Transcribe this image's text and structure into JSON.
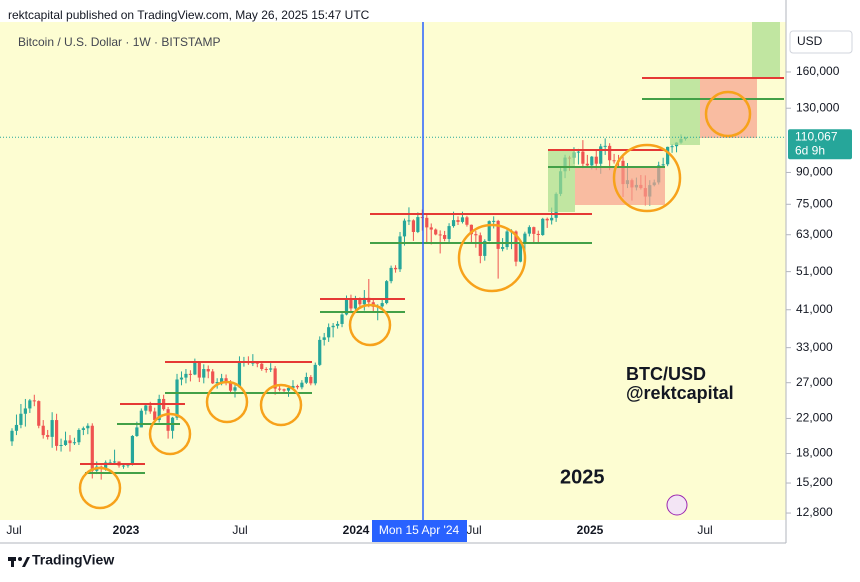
{
  "header": {
    "published": "rektcapital published on TradingView.com, May 26, 2025 15:47 UTC"
  },
  "chart_data": {
    "type": "candlestick",
    "title": "Bitcoin / U.S. Dollar · 1W · BITSTAMP",
    "currency": "USD",
    "log_scale": true,
    "ylim": [
      12300,
      213000
    ],
    "yticks": [
      {
        "value": 12800,
        "label": "12,800"
      },
      {
        "value": 15200,
        "label": "15,200"
      },
      {
        "value": 18000,
        "label": "18,000"
      },
      {
        "value": 22000,
        "label": "22,000"
      },
      {
        "value": 27000,
        "label": "27,000"
      },
      {
        "value": 33000,
        "label": "33,000"
      },
      {
        "value": 41000,
        "label": "41,000"
      },
      {
        "value": 51000,
        "label": "51,000"
      },
      {
        "value": 63000,
        "label": "63,000"
      },
      {
        "value": 75000,
        "label": "75,000"
      },
      {
        "value": 90000,
        "label": "90,000"
      },
      {
        "value": 130000,
        "label": "130,000"
      },
      {
        "value": 160000,
        "label": "160,000"
      }
    ],
    "up_color": "#26a69a",
    "down_color": "#ef5350",
    "candles": [
      [
        19300,
        20800,
        18800,
        20500
      ],
      [
        20500,
        22500,
        20000,
        21200
      ],
      [
        21200,
        23900,
        20800,
        22600
      ],
      [
        22600,
        24600,
        21000,
        23300
      ],
      [
        23300,
        24600,
        22700,
        24400
      ],
      [
        24400,
        25200,
        23600,
        24300
      ],
      [
        24300,
        24400,
        20800,
        21100
      ],
      [
        21100,
        21800,
        19600,
        20000
      ],
      [
        20000,
        20600,
        19500,
        19800
      ],
      [
        19800,
        22800,
        18600,
        21800
      ],
      [
        21800,
        22600,
        18300,
        18800
      ],
      [
        18800,
        19600,
        18200,
        18900
      ],
      [
        18900,
        20400,
        18800,
        19400
      ],
      [
        19400,
        20000,
        18200,
        19100
      ],
      [
        19100,
        19700,
        18900,
        19200
      ],
      [
        19200,
        20800,
        18900,
        20600
      ],
      [
        20600,
        21000,
        20000,
        20800
      ],
      [
        20800,
        21400,
        20100,
        21100
      ],
      [
        21100,
        21400,
        15600,
        16300
      ],
      [
        16300,
        17200,
        16000,
        16700
      ],
      [
        16700,
        16800,
        15500,
        16500
      ],
      [
        16500,
        17300,
        16300,
        17100
      ],
      [
        17100,
        17400,
        16900,
        17100
      ],
      [
        17100,
        18400,
        16900,
        17200
      ],
      [
        17200,
        17200,
        16600,
        16800
      ],
      [
        16800,
        16900,
        16500,
        16800
      ],
      [
        16800,
        17000,
        16600,
        16900
      ],
      [
        16900,
        20000,
        16800,
        19900
      ],
      [
        19900,
        21600,
        19800,
        20900
      ],
      [
        20900,
        23300,
        20900,
        23000
      ],
      [
        23000,
        24000,
        22500,
        23700
      ],
      [
        23700,
        24200,
        22600,
        22900
      ],
      [
        22900,
        23400,
        21400,
        21800
      ],
      [
        21800,
        25200,
        21500,
        24600
      ],
      [
        24600,
        25200,
        23000,
        23200
      ],
      [
        23200,
        23500,
        19600,
        20500
      ],
      [
        20500,
        22200,
        19600,
        22100
      ],
      [
        22100,
        28400,
        21800,
        27500
      ],
      [
        27500,
        28800,
        26600,
        27800
      ],
      [
        27800,
        29200,
        26900,
        28400
      ],
      [
        28400,
        29000,
        27200,
        28300
      ],
      [
        28300,
        31000,
        28200,
        30300
      ],
      [
        30300,
        30500,
        27100,
        27800
      ],
      [
        27800,
        30000,
        26900,
        29200
      ],
      [
        29200,
        29800,
        27700,
        28800
      ],
      [
        28800,
        29200,
        26800,
        26900
      ],
      [
        26900,
        27700,
        26100,
        27100
      ],
      [
        27100,
        28400,
        26600,
        27700
      ],
      [
        27700,
        28300,
        26600,
        27200
      ],
      [
        27200,
        27400,
        25400,
        25800
      ],
      [
        25800,
        26800,
        24800,
        26300
      ],
      [
        26300,
        31400,
        26200,
        30500
      ],
      [
        30500,
        31300,
        29600,
        30500
      ],
      [
        30500,
        31400,
        29900,
        30200
      ],
      [
        30200,
        31800,
        29700,
        30300
      ],
      [
        30300,
        30400,
        29500,
        30100
      ],
      [
        30100,
        30300,
        28900,
        29200
      ],
      [
        29200,
        29500,
        28600,
        29100
      ],
      [
        29100,
        30200,
        28700,
        29300
      ],
      [
        29300,
        29700,
        25200,
        26100
      ],
      [
        26100,
        26800,
        25700,
        26000
      ],
      [
        26000,
        26100,
        25400,
        25800
      ],
      [
        25800,
        26300,
        24900,
        26200
      ],
      [
        26200,
        27400,
        26100,
        26500
      ],
      [
        26500,
        26700,
        26000,
        26300
      ],
      [
        26300,
        27400,
        26000,
        27000
      ],
      [
        27000,
        28600,
        26800,
        27900
      ],
      [
        27900,
        28200,
        26600,
        26900
      ],
      [
        26900,
        30300,
        26600,
        29900
      ],
      [
        29900,
        35200,
        29700,
        34500
      ],
      [
        34500,
        35900,
        33400,
        35000
      ],
      [
        35000,
        37900,
        34100,
        37100
      ],
      [
        37100,
        38000,
        35000,
        37400
      ],
      [
        37400,
        38400,
        36800,
        37800
      ],
      [
        37800,
        40200,
        37100,
        39900
      ],
      [
        39900,
        44500,
        39700,
        43800
      ],
      [
        43800,
        44700,
        40200,
        41300
      ],
      [
        41300,
        44400,
        41000,
        43700
      ],
      [
        43700,
        44000,
        41400,
        42300
      ],
      [
        42300,
        45900,
        40800,
        43900
      ],
      [
        43900,
        48900,
        41600,
        42800
      ],
      [
        42800,
        43400,
        40600,
        41700
      ],
      [
        41700,
        42300,
        38600,
        41800
      ],
      [
        41800,
        43800,
        41400,
        42600
      ],
      [
        42600,
        48600,
        42300,
        48300
      ],
      [
        48300,
        52800,
        47700,
        52100
      ],
      [
        52100,
        52900,
        50700,
        51700
      ],
      [
        51700,
        64000,
        50900,
        62400
      ],
      [
        62400,
        69100,
        59200,
        68300
      ],
      [
        68300,
        73700,
        66600,
        68400
      ],
      [
        68400,
        68800,
        60800,
        64000
      ],
      [
        64000,
        71600,
        63600,
        69700
      ],
      [
        69700,
        72800,
        64500,
        69400
      ],
      [
        69400,
        71300,
        60100,
        65700
      ],
      [
        65700,
        67200,
        59600,
        64900
      ],
      [
        64900,
        65300,
        62800,
        63100
      ],
      [
        63100,
        64600,
        56600,
        62900
      ],
      [
        62900,
        64400,
        60700,
        61500
      ],
      [
        61500,
        67300,
        60200,
        66200
      ],
      [
        66200,
        71900,
        65600,
        68500
      ],
      [
        68500,
        70000,
        66600,
        67800
      ],
      [
        67800,
        71900,
        67200,
        69600
      ],
      [
        69600,
        70200,
        66000,
        66700
      ],
      [
        66700,
        66800,
        60000,
        63200
      ],
      [
        63200,
        64400,
        58500,
        62800
      ],
      [
        62800,
        63800,
        53500,
        55800
      ],
      [
        55800,
        61400,
        54300,
        60800
      ],
      [
        60800,
        68400,
        60600,
        68100
      ],
      [
        68100,
        70000,
        65300,
        68200
      ],
      [
        68200,
        68600,
        49000,
        58100
      ],
      [
        58100,
        61800,
        57300,
        58700
      ],
      [
        58700,
        65000,
        57800,
        64200
      ],
      [
        64200,
        65000,
        58000,
        64200
      ],
      [
        64200,
        64600,
        52600,
        54000
      ],
      [
        54000,
        60600,
        53800,
        60000
      ],
      [
        60000,
        64100,
        57600,
        63400
      ],
      [
        63400,
        66500,
        62400,
        65800
      ],
      [
        65800,
        66000,
        60000,
        63300
      ],
      [
        63300,
        64500,
        59800,
        62900
      ],
      [
        62900,
        69400,
        62600,
        69000
      ],
      [
        69000,
        69500,
        65500,
        68400
      ],
      [
        68400,
        73600,
        66800,
        69400
      ],
      [
        69400,
        80300,
        67800,
        79600
      ],
      [
        79600,
        93300,
        78600,
        90600
      ],
      [
        90600,
        99600,
        87100,
        98000
      ],
      [
        98000,
        99000,
        90800,
        97900
      ],
      [
        97900,
        104000,
        94500,
        101000
      ],
      [
        101000,
        103000,
        94200,
        101400
      ],
      [
        101400,
        108300,
        92200,
        94600
      ],
      [
        94600,
        99500,
        92600,
        93700
      ],
      [
        93700,
        98900,
        91600,
        98500
      ],
      [
        98500,
        102700,
        91200,
        94600
      ],
      [
        94600,
        106000,
        89300,
        104500
      ],
      [
        104500,
        109400,
        99500,
        104800
      ],
      [
        104800,
        106400,
        91200,
        96500
      ],
      [
        96500,
        100100,
        94700,
        96400
      ],
      [
        96400,
        99500,
        93300,
        96200
      ],
      [
        96200,
        99500,
        78200,
        84200
      ],
      [
        84200,
        95000,
        82300,
        86100
      ],
      [
        86100,
        86900,
        76600,
        82600
      ],
      [
        82600,
        87400,
        81200,
        83800
      ],
      [
        83800,
        88700,
        81600,
        82300
      ],
      [
        82300,
        88500,
        74500,
        78400
      ],
      [
        78400,
        86100,
        74400,
        83700
      ],
      [
        83700,
        86400,
        83100,
        85000
      ],
      [
        85000,
        95700,
        84000,
        93700
      ],
      [
        93700,
        97900,
        92800,
        94300
      ],
      [
        94300,
        104300,
        93300,
        104200
      ],
      [
        104200,
        105800,
        100700,
        104600
      ],
      [
        104600,
        107000,
        101000,
        106800
      ],
      [
        106800,
        111900,
        106100,
        109000
      ],
      [
        109000,
        110400,
        108000,
        110067
      ]
    ],
    "last_price": {
      "value": 110067,
      "label": "110,067"
    },
    "countdown": "6d 9h",
    "x_labels": [
      "Jul",
      "2023",
      "Jul",
      "2024",
      "Jul",
      "2025",
      "Jul"
    ],
    "crosshair_label": "Mon 15 Apr '24",
    "annotations": [
      "BTC/USD",
      "@rektcapital",
      "2025"
    ]
  },
  "footer": {
    "brand": "TradingView"
  }
}
